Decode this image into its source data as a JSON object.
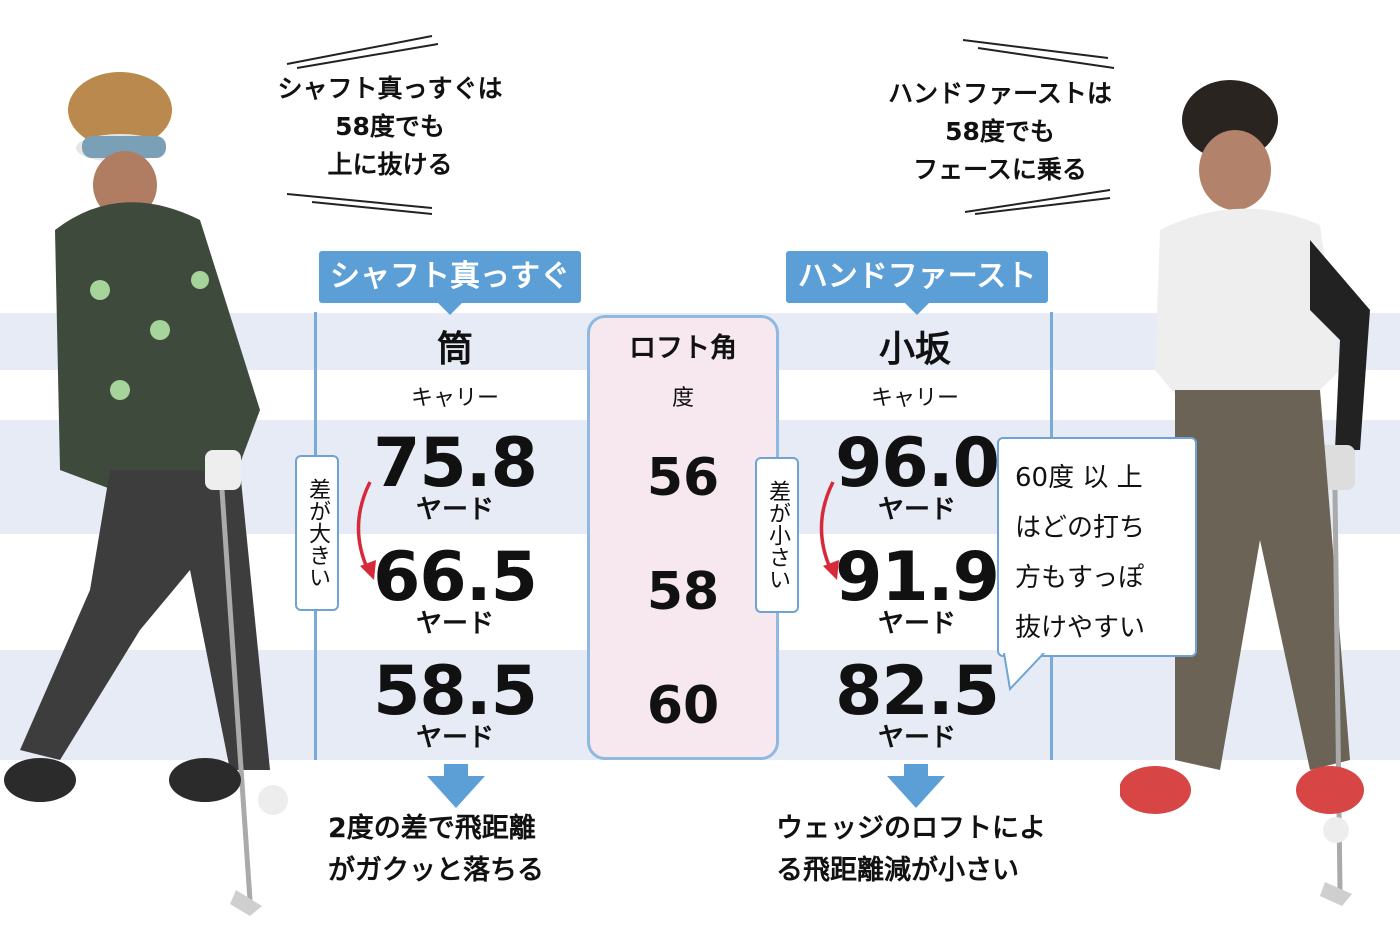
{
  "colors": {
    "accent": "#5c9fd6",
    "band": "#e6ebf6",
    "loft_panel": "#f6e8ee",
    "red_arrow": "#d62a3a"
  },
  "left": {
    "quote": [
      "シャフト真っすぐは",
      "58度でも",
      "上に抜ける"
    ],
    "tag": "シャフト真っすぐ",
    "name": "筒",
    "sub": "キャリー",
    "values": [
      "75.8",
      "66.5",
      "58.5"
    ],
    "unit": "ヤード",
    "diff_label": "差が大きい",
    "conclusion": [
      "2度の差で飛距離",
      "がガクッと落ちる"
    ]
  },
  "center": {
    "title": "ロフト角",
    "unit": "度",
    "lofts": [
      "56",
      "58",
      "60"
    ]
  },
  "right": {
    "quote": [
      "ハンドファーストは",
      "58度でも",
      "フェースに乗る"
    ],
    "tag": "ハンドファースト",
    "name": "小坂",
    "sub": "キャリー",
    "values": [
      "96.0",
      "91.9",
      "82.5"
    ],
    "unit": "ヤード",
    "diff_label": "差が小さい",
    "conclusion": [
      "ウェッジのロフトによ",
      "る飛距離減が小さい"
    ],
    "bubble": [
      "60度 以 上",
      "はどの打ち",
      "方もすっぽ",
      "抜けやすい"
    ]
  }
}
